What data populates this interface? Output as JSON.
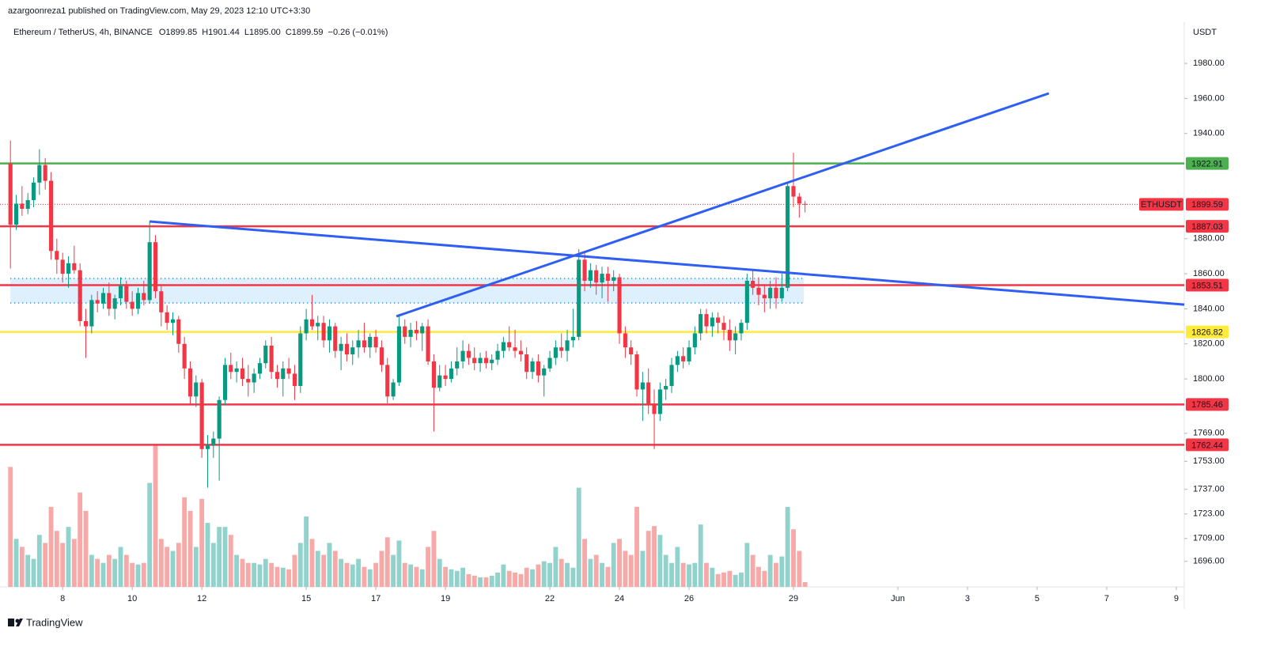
{
  "chart_data": {
    "type": "candlestick",
    "publisher": "azargoonreza1 published on TradingView.com, May 29, 2023 12:10 UTC+3:30",
    "symbol": "Ethereum / TetherUS, 4h, BINANCE",
    "legend_values": [
      "O1899.85",
      "H1901.44",
      "L1895.00",
      "C1899.59",
      "−0.26 (−0.01%)"
    ],
    "currency": "USDT",
    "brand": "TradingView",
    "up_color": "#089981",
    "down_color": "#f23645",
    "up_volume_color": "#92d2cc",
    "down_volume_color": "#f7a9a7",
    "grid": false,
    "xlim": [
      6.2,
      40.23
    ],
    "ylim": [
      1681.4,
      2003.5
    ],
    "xticks": [
      8,
      10,
      12,
      15,
      17,
      19,
      22,
      24,
      26,
      29,
      {
        "value": 32,
        "label": "Jun"
      },
      {
        "value": 34,
        "label": "3"
      },
      {
        "value": 36,
        "label": "5"
      },
      {
        "value": 38,
        "label": "7"
      },
      {
        "value": 40,
        "label": "9"
      }
    ],
    "yticks": [
      {
        "value": 1980,
        "label": "1980.00"
      },
      {
        "value": 1960,
        "label": "1960.00"
      },
      {
        "value": 1940,
        "label": "1940.00"
      },
      {
        "value": 1880,
        "label": "1880.00"
      },
      {
        "value": 1860,
        "label": "1860.00"
      },
      {
        "value": 1840,
        "label": "1840.00"
      },
      {
        "value": 1820,
        "label": "1820.00"
      },
      {
        "value": 1800,
        "label": "1800.00"
      },
      {
        "value": 1769,
        "label": "1769.00"
      },
      {
        "value": 1753,
        "label": "1753.00"
      },
      {
        "value": 1737,
        "label": "1737.00"
      },
      {
        "value": 1723,
        "label": "1723.00"
      },
      {
        "value": 1709,
        "label": "1709.00"
      },
      {
        "value": 1696,
        "label": "1696.00"
      }
    ],
    "levels": [
      {
        "value": 1922.91,
        "color": "#4caf50"
      },
      {
        "value": 1887.03,
        "color": "#f23645"
      },
      {
        "value": 1853.51,
        "color": "#f23645"
      },
      {
        "value": 1826.82,
        "color": "#ffeb3b"
      },
      {
        "value": 1785.46,
        "color": "#f23645"
      },
      {
        "value": 1762.44,
        "color": "#f23645"
      }
    ],
    "last_price": {
      "name": "ETHUSDT",
      "value": 1899.59,
      "color": "#f23645"
    },
    "zone": {
      "x": [
        6.5,
        29.3
      ],
      "top": 1857.3,
      "bottom": 1843.3,
      "color": "#2196f3"
    },
    "trendlines": [
      {
        "color": "#2f5ff2",
        "points": [
          [
            10.5,
            1889.8
          ],
          [
            40.23,
            1842.4
          ]
        ]
      },
      {
        "color": "#2f5ff2",
        "points": [
          [
            17.59,
            1835.7
          ],
          [
            36.34,
            1962.9
          ]
        ]
      }
    ],
    "candles": [
      [
        6.5,
        1923,
        1936,
        1863,
        1888,
        150
      ],
      [
        6.667,
        1888,
        1905,
        1885,
        1900,
        60
      ],
      [
        6.833,
        1900,
        1910,
        1893,
        1897,
        50
      ],
      [
        7,
        1897,
        1906,
        1894,
        1902,
        40
      ],
      [
        7.167,
        1902,
        1915,
        1898,
        1912,
        35
      ],
      [
        7.333,
        1912,
        1931,
        1905,
        1922,
        65
      ],
      [
        7.5,
        1922,
        1926,
        1908,
        1913,
        55
      ],
      [
        7.667,
        1913,
        1918,
        1868,
        1873,
        100
      ],
      [
        7.833,
        1873,
        1880,
        1860,
        1868,
        70
      ],
      [
        8,
        1868,
        1872,
        1855,
        1860,
        55
      ],
      [
        8.167,
        1860,
        1870,
        1852,
        1866,
        75
      ],
      [
        8.333,
        1866,
        1876,
        1860,
        1862,
        60
      ],
      [
        8.5,
        1862,
        1866,
        1830,
        1833,
        118
      ],
      [
        8.667,
        1833,
        1840,
        1812,
        1830,
        95
      ],
      [
        8.833,
        1830,
        1848,
        1826,
        1845,
        40
      ],
      [
        9,
        1845,
        1850,
        1838,
        1843,
        35
      ],
      [
        9.167,
        1843,
        1852,
        1840,
        1849,
        30
      ],
      [
        9.333,
        1849,
        1855,
        1836,
        1840,
        40
      ],
      [
        9.5,
        1840,
        1848,
        1834,
        1846,
        35
      ],
      [
        9.667,
        1846,
        1858,
        1842,
        1853,
        50
      ],
      [
        9.833,
        1853,
        1856,
        1840,
        1844,
        40
      ],
      [
        10,
        1844,
        1850,
        1836,
        1840,
        30
      ],
      [
        10.167,
        1840,
        1852,
        1837,
        1849,
        28
      ],
      [
        10.333,
        1849,
        1856,
        1842,
        1845,
        30
      ],
      [
        10.5,
        1845,
        1890,
        1843,
        1878,
        130
      ],
      [
        10.667,
        1878,
        1882,
        1846,
        1850,
        178
      ],
      [
        10.833,
        1850,
        1854,
        1830,
        1838,
        60
      ],
      [
        11,
        1838,
        1842,
        1828,
        1832,
        50
      ],
      [
        11.167,
        1832,
        1838,
        1825,
        1834,
        45
      ],
      [
        11.333,
        1834,
        1836,
        1815,
        1820,
        55
      ],
      [
        11.5,
        1820,
        1824,
        1800,
        1806,
        112
      ],
      [
        11.667,
        1806,
        1810,
        1785,
        1790,
        95
      ],
      [
        11.833,
        1790,
        1802,
        1784,
        1798,
        50
      ],
      [
        12,
        1798,
        1800,
        1755,
        1760,
        110
      ],
      [
        12.167,
        1760,
        1768,
        1738,
        1762,
        80
      ],
      [
        12.333,
        1762,
        1770,
        1755,
        1766,
        55
      ],
      [
        12.5,
        1766,
        1790,
        1742,
        1788,
        75
      ],
      [
        12.667,
        1788,
        1812,
        1785,
        1808,
        75
      ],
      [
        12.833,
        1808,
        1815,
        1800,
        1804,
        65
      ],
      [
        13,
        1804,
        1810,
        1798,
        1806,
        40
      ],
      [
        13.167,
        1806,
        1812,
        1796,
        1800,
        35
      ],
      [
        13.333,
        1800,
        1808,
        1790,
        1798,
        30
      ],
      [
        13.5,
        1798,
        1806,
        1792,
        1803,
        30
      ],
      [
        13.667,
        1803,
        1812,
        1800,
        1809,
        28
      ],
      [
        13.833,
        1809,
        1822,
        1806,
        1819,
        35
      ],
      [
        14,
        1819,
        1824,
        1800,
        1804,
        30
      ],
      [
        14.167,
        1804,
        1808,
        1795,
        1800,
        25
      ],
      [
        14.333,
        1800,
        1810,
        1790,
        1806,
        24
      ],
      [
        14.5,
        1806,
        1812,
        1800,
        1803,
        22
      ],
      [
        14.667,
        1803,
        1808,
        1788,
        1796,
        40
      ],
      [
        14.833,
        1796,
        1830,
        1792,
        1826,
        55
      ],
      [
        15,
        1826,
        1840,
        1822,
        1834,
        88
      ],
      [
        15.167,
        1834,
        1848,
        1828,
        1830,
        60
      ],
      [
        15.333,
        1830,
        1836,
        1822,
        1832,
        45
      ],
      [
        15.5,
        1832,
        1836,
        1818,
        1822,
        40
      ],
      [
        15.667,
        1822,
        1834,
        1815,
        1830,
        55
      ],
      [
        15.833,
        1830,
        1832,
        1812,
        1816,
        45
      ],
      [
        16,
        1816,
        1824,
        1805,
        1820,
        35
      ],
      [
        16.167,
        1820,
        1826,
        1810,
        1814,
        30
      ],
      [
        16.333,
        1814,
        1822,
        1808,
        1818,
        28
      ],
      [
        16.5,
        1818,
        1828,
        1812,
        1822,
        35
      ],
      [
        16.667,
        1822,
        1832,
        1815,
        1818,
        25
      ],
      [
        16.833,
        1818,
        1826,
        1812,
        1824,
        22
      ],
      [
        17,
        1824,
        1828,
        1815,
        1818,
        30
      ],
      [
        17.167,
        1818,
        1822,
        1804,
        1808,
        45
      ],
      [
        17.333,
        1808,
        1812,
        1786,
        1790,
        62
      ],
      [
        17.5,
        1790,
        1800,
        1788,
        1798,
        40
      ],
      [
        17.667,
        1798,
        1836,
        1796,
        1830,
        58
      ],
      [
        17.833,
        1830,
        1834,
        1820,
        1824,
        30
      ],
      [
        18,
        1824,
        1832,
        1818,
        1828,
        28
      ],
      [
        18.167,
        1828,
        1833,
        1822,
        1826,
        25
      ],
      [
        18.333,
        1826,
        1832,
        1816,
        1830,
        22
      ],
      [
        18.5,
        1830,
        1834,
        1808,
        1810,
        50
      ],
      [
        18.667,
        1810,
        1814,
        1770,
        1795,
        70
      ],
      [
        18.833,
        1795,
        1808,
        1793,
        1802,
        35
      ],
      [
        19,
        1802,
        1808,
        1796,
        1800,
        25
      ],
      [
        19.167,
        1800,
        1810,
        1798,
        1806,
        22
      ],
      [
        19.333,
        1806,
        1818,
        1802,
        1810,
        20
      ],
      [
        19.5,
        1810,
        1822,
        1806,
        1816,
        24
      ],
      [
        19.667,
        1816,
        1820,
        1808,
        1812,
        16
      ],
      [
        19.833,
        1812,
        1818,
        1805,
        1809,
        14
      ],
      [
        20,
        1809,
        1815,
        1804,
        1812,
        12
      ],
      [
        20.167,
        1812,
        1816,
        1806,
        1809,
        12
      ],
      [
        20.333,
        1809,
        1814,
        1805,
        1811,
        14
      ],
      [
        20.5,
        1811,
        1820,
        1808,
        1816,
        18
      ],
      [
        20.667,
        1816,
        1824,
        1812,
        1821,
        28
      ],
      [
        20.833,
        1821,
        1830,
        1816,
        1818,
        20
      ],
      [
        21,
        1818,
        1828,
        1812,
        1816,
        18
      ],
      [
        21.167,
        1816,
        1822,
        1810,
        1814,
        16
      ],
      [
        21.333,
        1814,
        1818,
        1800,
        1804,
        24
      ],
      [
        21.5,
        1804,
        1812,
        1800,
        1810,
        22
      ],
      [
        21.667,
        1810,
        1814,
        1798,
        1802,
        28
      ],
      [
        21.833,
        1802,
        1808,
        1790,
        1806,
        32
      ],
      [
        22,
        1806,
        1816,
        1804,
        1812,
        30
      ],
      [
        22.167,
        1812,
        1822,
        1808,
        1818,
        50
      ],
      [
        22.333,
        1818,
        1826,
        1812,
        1816,
        35
      ],
      [
        22.5,
        1816,
        1828,
        1810,
        1822,
        30
      ],
      [
        22.667,
        1822,
        1840,
        1818,
        1824,
        24
      ],
      [
        22.833,
        1824,
        1874,
        1822,
        1868,
        124
      ],
      [
        23,
        1868,
        1872,
        1850,
        1856,
        60
      ],
      [
        23.167,
        1856,
        1866,
        1852,
        1862,
        35
      ],
      [
        23.333,
        1862,
        1865,
        1848,
        1855,
        40
      ],
      [
        23.5,
        1855,
        1864,
        1846,
        1860,
        30
      ],
      [
        23.667,
        1860,
        1864,
        1844,
        1856,
        25
      ],
      [
        23.833,
        1856,
        1862,
        1850,
        1858,
        55
      ],
      [
        24,
        1858,
        1860,
        1820,
        1826,
        60
      ],
      [
        24.167,
        1826,
        1830,
        1812,
        1818,
        45
      ],
      [
        24.333,
        1818,
        1822,
        1808,
        1814,
        40
      ],
      [
        24.5,
        1814,
        1816,
        1790,
        1794,
        100
      ],
      [
        24.667,
        1794,
        1804,
        1776,
        1798,
        45
      ],
      [
        24.833,
        1798,
        1806,
        1780,
        1786,
        70
      ],
      [
        25,
        1786,
        1794,
        1760,
        1780,
        76
      ],
      [
        25.167,
        1780,
        1798,
        1776,
        1794,
        65
      ],
      [
        25.333,
        1794,
        1800,
        1788,
        1796,
        40
      ],
      [
        25.5,
        1796,
        1812,
        1792,
        1808,
        30
      ],
      [
        25.667,
        1808,
        1816,
        1804,
        1813,
        50
      ],
      [
        25.833,
        1813,
        1818,
        1806,
        1810,
        30
      ],
      [
        26,
        1810,
        1822,
        1808,
        1818,
        28
      ],
      [
        26.167,
        1818,
        1830,
        1814,
        1826,
        30
      ],
      [
        26.333,
        1826,
        1840,
        1822,
        1837,
        78
      ],
      [
        26.5,
        1837,
        1840,
        1826,
        1830,
        30
      ],
      [
        26.667,
        1830,
        1838,
        1824,
        1835,
        24
      ],
      [
        26.833,
        1835,
        1838,
        1826,
        1832,
        16
      ],
      [
        27,
        1832,
        1836,
        1822,
        1828,
        18
      ],
      [
        27.167,
        1828,
        1834,
        1816,
        1822,
        20
      ],
      [
        27.333,
        1822,
        1830,
        1814,
        1826,
        15
      ],
      [
        27.5,
        1826,
        1834,
        1822,
        1832,
        18
      ],
      [
        27.667,
        1832,
        1860,
        1828,
        1856,
        55
      ],
      [
        27.833,
        1856,
        1862,
        1848,
        1852,
        40
      ],
      [
        28,
        1852,
        1858,
        1842,
        1848,
        25
      ],
      [
        28.167,
        1848,
        1854,
        1838,
        1846,
        20
      ],
      [
        28.333,
        1846,
        1856,
        1840,
        1852,
        40
      ],
      [
        28.5,
        1852,
        1858,
        1840,
        1846,
        30
      ],
      [
        28.667,
        1846,
        1860,
        1844,
        1852,
        38
      ],
      [
        28.833,
        1852,
        1912,
        1850,
        1910,
        100
      ],
      [
        29,
        1910,
        1929,
        1898,
        1904,
        72
      ],
      [
        29.167,
        1904,
        1906,
        1892,
        1900,
        45
      ],
      [
        29.333,
        1899.85,
        1901.44,
        1895,
        1899.59,
        6
      ]
    ]
  }
}
